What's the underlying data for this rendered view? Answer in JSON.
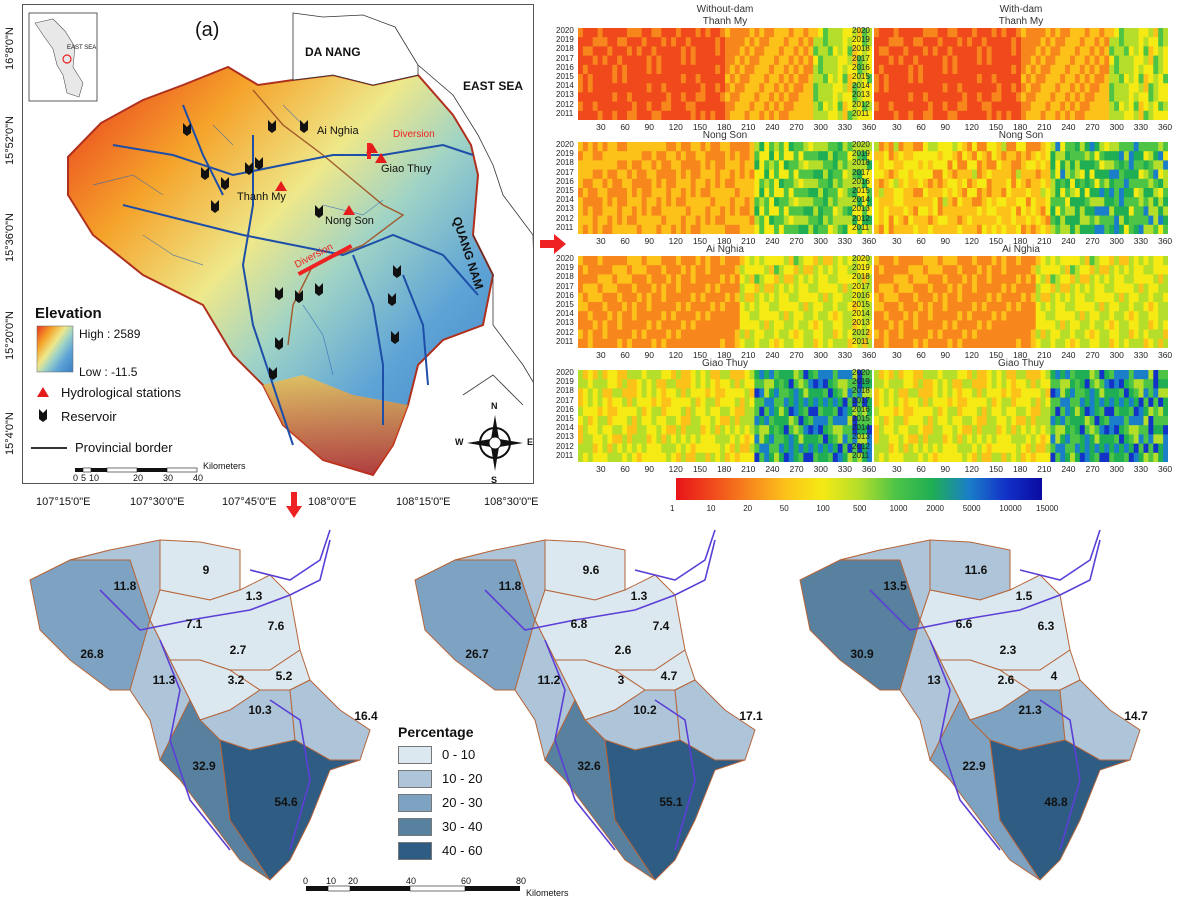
{
  "panel_label": "(a)",
  "places": {
    "da_nang": "DA NANG",
    "east_sea": "EAST SEA",
    "quang_nam": "QUANG NAM",
    "inset_east_sea": "EAST SEA",
    "ai_nghia": "Ai Nghia",
    "giao_thuy": "Giao Thuy",
    "thanh_my": "Thanh My",
    "nong_son": "Nong Son",
    "diversion_1": "Diversion",
    "diversion_2": "Diversion"
  },
  "legend": {
    "title": "Elevation",
    "high": "High : 2589",
    "low": "Low : -11.5",
    "hydro": "Hydrological stations",
    "reservoir": "Reservoir",
    "border": "Provincial border"
  },
  "scalebar": {
    "ticks": [
      "0",
      "5",
      "10",
      "20",
      "30",
      "40"
    ],
    "unit": "Kilometers"
  },
  "compass": {
    "n": "N",
    "s": "S",
    "e": "E",
    "w": "W"
  },
  "lat_labels": [
    "16°8'0\"N",
    "15°52'0\"N",
    "15°36'0\"N",
    "15°20'0\"N",
    "15°4'0\"N"
  ],
  "lon_labels": [
    "107°15'0\"E",
    "107°30'0\"E",
    "107°45'0\"E",
    "108°0'0\"E",
    "108°15'0\"E",
    "108°30'0\"E"
  ],
  "heatmaps": {
    "col_titles": [
      "Without-dam",
      "With-dam"
    ],
    "stations": [
      "Thanh My",
      "Nong Son",
      "Ai Nghia",
      "Giao Thuy"
    ],
    "years": [
      "2020",
      "2019",
      "2018",
      "2017",
      "2016",
      "2015",
      "2014",
      "2013",
      "2012",
      "2011"
    ],
    "xticks": [
      "30",
      "60",
      "90",
      "120",
      "150",
      "180",
      "210",
      "240",
      "270",
      "300",
      "330",
      "360"
    ],
    "colorbar_ticks": [
      "1",
      "10",
      "20",
      "50",
      "100",
      "500",
      "1000",
      "2000",
      "5000",
      "10000",
      "15000"
    ],
    "colors": [
      "#e8141a",
      "#f04a1c",
      "#f7861d",
      "#fcc21a",
      "#f5ea14",
      "#b4de2a",
      "#4ec447",
      "#1fae53",
      "#1a7fc8",
      "#1232c8",
      "#0a0aa0"
    ]
  },
  "percentage_legend": {
    "title": "Percentage",
    "classes": [
      "0 - 10",
      "10 - 20",
      "20 - 30",
      "30 - 40",
      "40 - 60"
    ],
    "colors": [
      "#dce8ef",
      "#aec5d9",
      "#7ea3c2",
      "#58809f",
      "#2f5c83"
    ]
  },
  "bottom_scale": {
    "ticks": [
      "0",
      "10",
      "20",
      "40",
      "60",
      "80"
    ],
    "unit": "Kilometers"
  },
  "subbasin_maps": [
    {
      "values": [
        "11.8",
        "9",
        "1.3",
        "7.1",
        "7.6",
        "26.8",
        "2.7",
        "3.2",
        "5.2",
        "11.3",
        "10.3",
        "16.4",
        "32.9",
        "54.6"
      ]
    },
    {
      "values": [
        "11.8",
        "9.6",
        "1.3",
        "6.8",
        "7.4",
        "26.7",
        "2.6",
        "3",
        "4.7",
        "11.2",
        "10.2",
        "17.1",
        "32.6",
        "55.1"
      ]
    },
    {
      "values": [
        "13.5",
        "11.6",
        "1.5",
        "6.6",
        "6.3",
        "30.9",
        "2.3",
        "2.6",
        "4",
        "13",
        "21.3",
        "14.7",
        "22.9",
        "48.8"
      ]
    }
  ]
}
